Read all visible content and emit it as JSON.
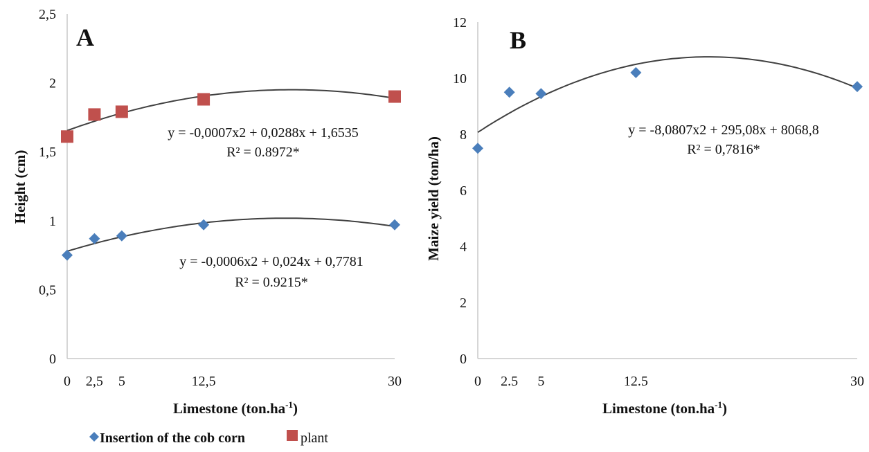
{
  "colors": {
    "insertion": "#4a7ebb",
    "plant": "#c0504d",
    "trend": "#404040",
    "axis": "#c8c8c8"
  },
  "legend": {
    "insertion_label": "Insertion of the cob corn",
    "plant_label": "plant",
    "placement": "bottom-left"
  },
  "chart_data": [
    {
      "type": "scatter",
      "panel_label": "A",
      "xlabel": "Limestone  (ton.ha",
      "xlabel_sup": "-1",
      "xlabel_end": ")",
      "ylabel": "Height (cm)",
      "xlim": [
        0,
        30
      ],
      "ylim": [
        0,
        2.5
      ],
      "x_ticks": [
        0,
        2.5,
        5,
        12.5,
        30
      ],
      "x_tick_labels": [
        "0",
        "2,5",
        "5",
        "12,5",
        "30"
      ],
      "y_ticks": [
        0,
        0.5,
        1,
        1.5,
        2,
        2.5
      ],
      "y_tick_labels": [
        "0",
        "0,5",
        "1",
        "1,5",
        "2",
        "2,5"
      ],
      "grid": false,
      "series": [
        {
          "name": "Insertion of the cob corn",
          "marker": "diamond",
          "x": [
            0,
            2.5,
            5,
            12.5,
            30
          ],
          "y": [
            0.75,
            0.87,
            0.89,
            0.97,
            0.97
          ],
          "trend": {
            "a": -0.0006,
            "b": 0.024,
            "c": 0.7781
          },
          "equation": "y = -0,0006x2 + 0,024x + 0,7781",
          "r2": "R² = 0.9215*"
        },
        {
          "name": "plant",
          "marker": "square",
          "x": [
            0,
            2.5,
            5,
            12.5,
            30
          ],
          "y": [
            1.61,
            1.77,
            1.79,
            1.88,
            1.9
          ],
          "trend": {
            "a": -0.0007,
            "b": 0.0288,
            "c": 1.6535
          },
          "equation": "y = -0,0007x2 + 0,0288x + 1,6535",
          "r2": "R² = 0.8972*"
        }
      ]
    },
    {
      "type": "scatter",
      "panel_label": "B",
      "xlabel": "Limestone  (ton.ha",
      "xlabel_sup": "-1",
      "xlabel_end": ")",
      "ylabel": "Maize yield (ton/ha)",
      "xlim": [
        0,
        30
      ],
      "ylim": [
        0,
        12
      ],
      "x_ticks": [
        0,
        2.5,
        5,
        12.5,
        30
      ],
      "x_tick_labels": [
        "0",
        "2.5",
        "5",
        "12.5",
        "30"
      ],
      "y_ticks": [
        0,
        2,
        4,
        6,
        8,
        10,
        12
      ],
      "y_tick_labels": [
        "0",
        "2",
        "4",
        "6",
        "8",
        "10",
        "12"
      ],
      "grid": false,
      "series": [
        {
          "marker": "diamond",
          "x": [
            0,
            2.5,
            5,
            12.5,
            30
          ],
          "y": [
            7.5,
            9.5,
            9.45,
            10.2,
            9.7
          ],
          "trend": {
            "a": -0.0080807,
            "b": 0.29508,
            "c": 8.0688
          },
          "equation": "y = -8,0807x2 + 295,08x + 8068,8",
          "r2": "R² = 0,7816*"
        }
      ]
    }
  ]
}
